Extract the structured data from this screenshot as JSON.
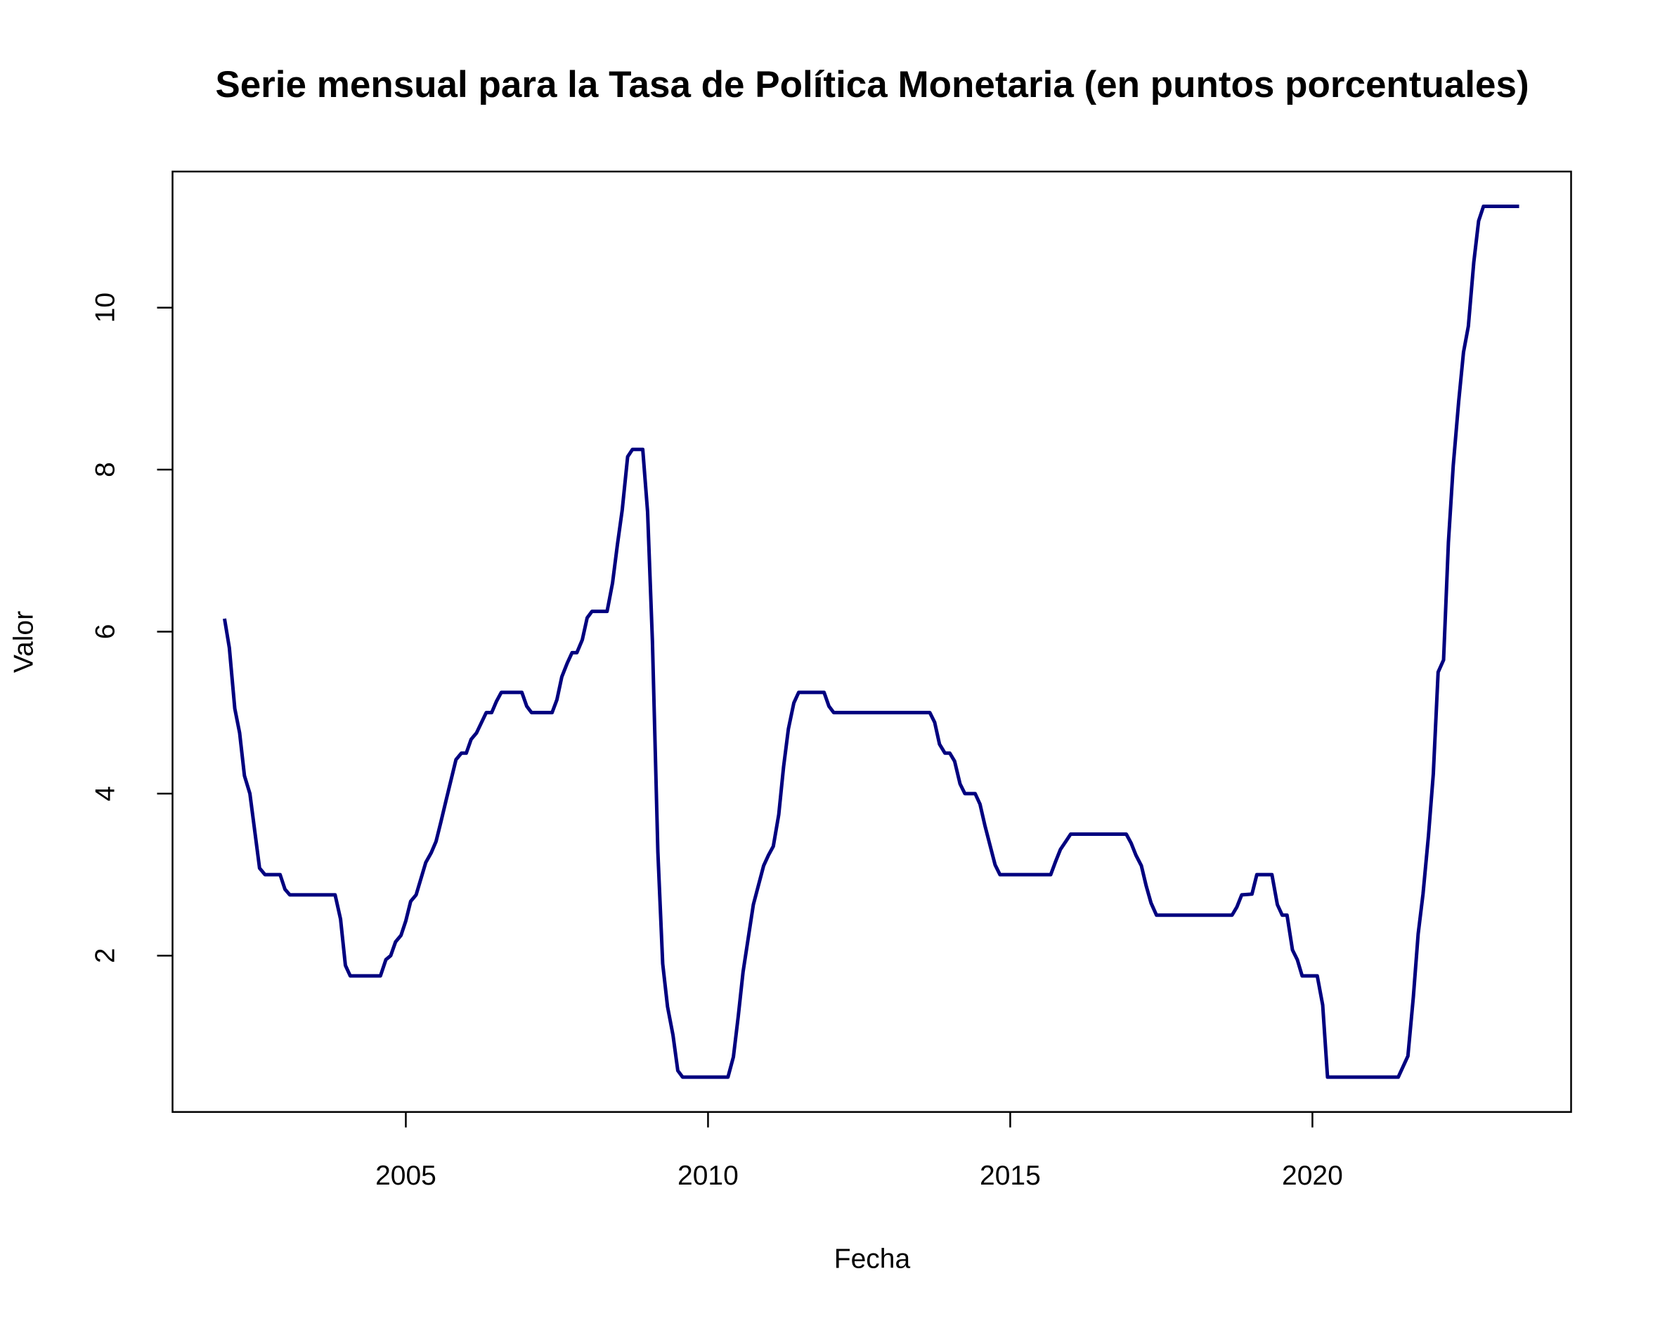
{
  "chart_data": {
    "type": "line",
    "title": "Serie mensual para la Tasa de Política Monetaria (en puntos porcentuales)",
    "x_label": "Fecha",
    "y_label": "Valor",
    "xlim": [
      2001.14,
      2024.28
    ],
    "ylim": [
      0.07,
      11.68
    ],
    "xticks": [
      2005,
      2010,
      2015,
      2020
    ],
    "yticks": [
      2,
      4,
      6,
      8,
      10
    ],
    "grid": false,
    "x": [
      2002.0,
      2002.08,
      2002.17,
      2002.25,
      2002.33,
      2002.42,
      2002.58,
      2002.67,
      2002.92,
      2003.0,
      2003.08,
      2003.83,
      2003.92,
      2004.0,
      2004.08,
      2004.58,
      2004.67,
      2004.75,
      2004.83,
      2004.92,
      2005.0,
      2005.08,
      2005.17,
      2005.33,
      2005.42,
      2005.5,
      2005.58,
      2005.67,
      2005.83,
      2005.92,
      2006.0,
      2006.08,
      2006.17,
      2006.33,
      2006.42,
      2006.5,
      2006.58,
      2006.92,
      2007.0,
      2007.08,
      2007.42,
      2007.5,
      2007.58,
      2007.67,
      2007.75,
      2007.83,
      2007.92,
      2008.0,
      2008.08,
      2008.33,
      2008.42,
      2008.5,
      2008.58,
      2008.67,
      2008.75,
      2008.92,
      2009.0,
      2009.08,
      2009.17,
      2009.25,
      2009.33,
      2009.42,
      2009.5,
      2009.58,
      2010.33,
      2010.42,
      2010.5,
      2010.58,
      2010.75,
      2010.92,
      2011.0,
      2011.08,
      2011.17,
      2011.25,
      2011.33,
      2011.42,
      2011.5,
      2011.92,
      2012.0,
      2012.08,
      2013.67,
      2013.75,
      2013.83,
      2013.92,
      2014.0,
      2014.08,
      2014.17,
      2014.25,
      2014.42,
      2014.5,
      2014.58,
      2014.67,
      2014.75,
      2014.83,
      2015.67,
      2015.75,
      2015.83,
      2015.92,
      2016.0,
      2016.92,
      2017.0,
      2017.08,
      2017.17,
      2017.25,
      2017.33,
      2017.42,
      2018.67,
      2018.75,
      2018.83,
      2019.0,
      2019.08,
      2019.33,
      2019.42,
      2019.5,
      2019.58,
      2019.67,
      2019.75,
      2019.83,
      2020.08,
      2020.17,
      2020.25,
      2021.42,
      2021.58,
      2021.67,
      2021.75,
      2021.83,
      2021.92,
      2022.0,
      2022.08,
      2022.17,
      2022.25,
      2022.33,
      2022.42,
      2022.5,
      2022.58,
      2022.67,
      2022.75,
      2022.83,
      2023.42
    ],
    "series": [
      {
        "color": "#00007f",
        "values": [
          6.16,
          5.8,
          5.05,
          4.75,
          4.22,
          4.0,
          3.08,
          3.0,
          3.0,
          2.82,
          2.75,
          2.75,
          2.45,
          1.88,
          1.75,
          1.75,
          1.95,
          2.0,
          2.17,
          2.25,
          2.43,
          2.67,
          2.75,
          3.15,
          3.27,
          3.41,
          3.65,
          3.93,
          4.42,
          4.5,
          4.5,
          4.67,
          4.75,
          5.0,
          5.0,
          5.14,
          5.25,
          5.25,
          5.08,
          5.0,
          5.0,
          5.16,
          5.44,
          5.61,
          5.74,
          5.74,
          5.9,
          6.17,
          6.25,
          6.25,
          6.6,
          7.07,
          7.5,
          8.16,
          8.25,
          8.25,
          7.48,
          5.88,
          3.28,
          1.9,
          1.37,
          1.02,
          0.58,
          0.5,
          0.5,
          0.75,
          1.25,
          1.8,
          2.63,
          3.11,
          3.24,
          3.35,
          3.74,
          4.33,
          4.8,
          5.12,
          5.25,
          5.25,
          5.08,
          5.0,
          5.0,
          4.88,
          4.61,
          4.5,
          4.5,
          4.4,
          4.12,
          4.0,
          4.0,
          3.87,
          3.61,
          3.35,
          3.12,
          3.0,
          3.0,
          3.16,
          3.31,
          3.41,
          3.5,
          3.5,
          3.39,
          3.24,
          3.11,
          2.86,
          2.65,
          2.5,
          2.5,
          2.6,
          2.75,
          2.76,
          3.0,
          3.0,
          2.63,
          2.5,
          2.5,
          2.07,
          1.95,
          1.75,
          1.75,
          1.39,
          0.5,
          0.5,
          0.76,
          1.49,
          2.27,
          2.76,
          3.48,
          4.24,
          5.5,
          5.65,
          7.1,
          8.05,
          8.84,
          9.45,
          9.77,
          10.56,
          11.07,
          11.25,
          11.25
        ]
      }
    ]
  }
}
